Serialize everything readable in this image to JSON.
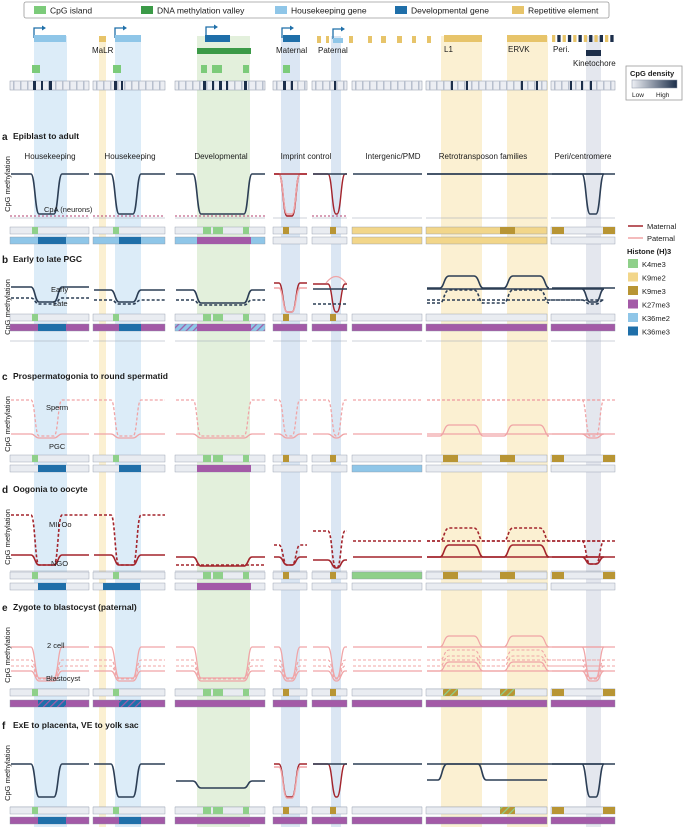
{
  "legend_top": [
    {
      "label": "CpG island",
      "color": "#7ccb7a"
    },
    {
      "label": "DNA methylation valley",
      "color": "#3b9a47"
    },
    {
      "label": "Housekeeping gene",
      "color": "#8fc6e8"
    },
    {
      "label": "Developmental gene",
      "color": "#1f6fa9"
    },
    {
      "label": "Repetitive element",
      "color": "#e7c46a"
    }
  ],
  "locus_labels": {
    "malr": "MaLR",
    "maternal": "Maternal",
    "paternal": "Paternal",
    "l1": "L1",
    "ervk": "ERVK",
    "peri": "Peri.",
    "kinetochore": "Kinetochore"
  },
  "cpg_density": {
    "title": "CpG density",
    "low": "Low",
    "high": "High"
  },
  "columns": [
    "Housekeeping",
    "Housekeeping",
    "Developmental",
    "Imprint control",
    "Intergenic/PMD",
    "Retrotransposon families",
    "Peri/centromere"
  ],
  "y_axis_label": "CpG methylation",
  "panels": [
    {
      "letter": "a",
      "title": "Epiblast to adult",
      "annotations": [
        "CpA (neurons)"
      ]
    },
    {
      "letter": "b",
      "title": "Early to late PGC",
      "annotations": [
        "Early",
        "Late"
      ]
    },
    {
      "letter": "c",
      "title": "Prospermatogonia to round spermatid",
      "annotations": [
        "Sperm",
        "PGC"
      ]
    },
    {
      "letter": "d",
      "title": "Oogonia to oocyte",
      "annotations": [
        "MII Oo",
        "NGO"
      ]
    },
    {
      "letter": "e",
      "title": "Zygote to blastocyst (paternal)",
      "annotations": [
        "2 cell",
        "Blastocyst"
      ]
    },
    {
      "letter": "f",
      "title": "ExE to placenta, VE to yolk sac",
      "annotations": []
    }
  ],
  "line_legend": [
    {
      "label": "Maternal",
      "color": "#a3242c"
    },
    {
      "label": "Paternal",
      "color": "#f0a4a6"
    }
  ],
  "histone_legend": {
    "title": "Histone (H)3",
    "items": [
      {
        "label": "K4me3",
        "color": "#8fd08a"
      },
      {
        "label": "K9me2",
        "color": "#f2d68a"
      },
      {
        "label": "K9me3",
        "color": "#b89534"
      },
      {
        "label": "K27me3",
        "color": "#a35aa7"
      },
      {
        "label": "K36me2",
        "color": "#8fc6e8"
      },
      {
        "label": "K36me3",
        "color": "#1f6fa9"
      }
    ]
  },
  "colors": {
    "adult_line": "#2c3e55",
    "maternal": "#a3242c",
    "paternal": "#f0a4a6",
    "hk_shade": "#dcecf8",
    "dev_shade": "#e3f0dc",
    "rep_shade": "#fbf0d2",
    "imprint_shade": "#dbe6f3",
    "peri_shade": "#e4e7ee"
  }
}
